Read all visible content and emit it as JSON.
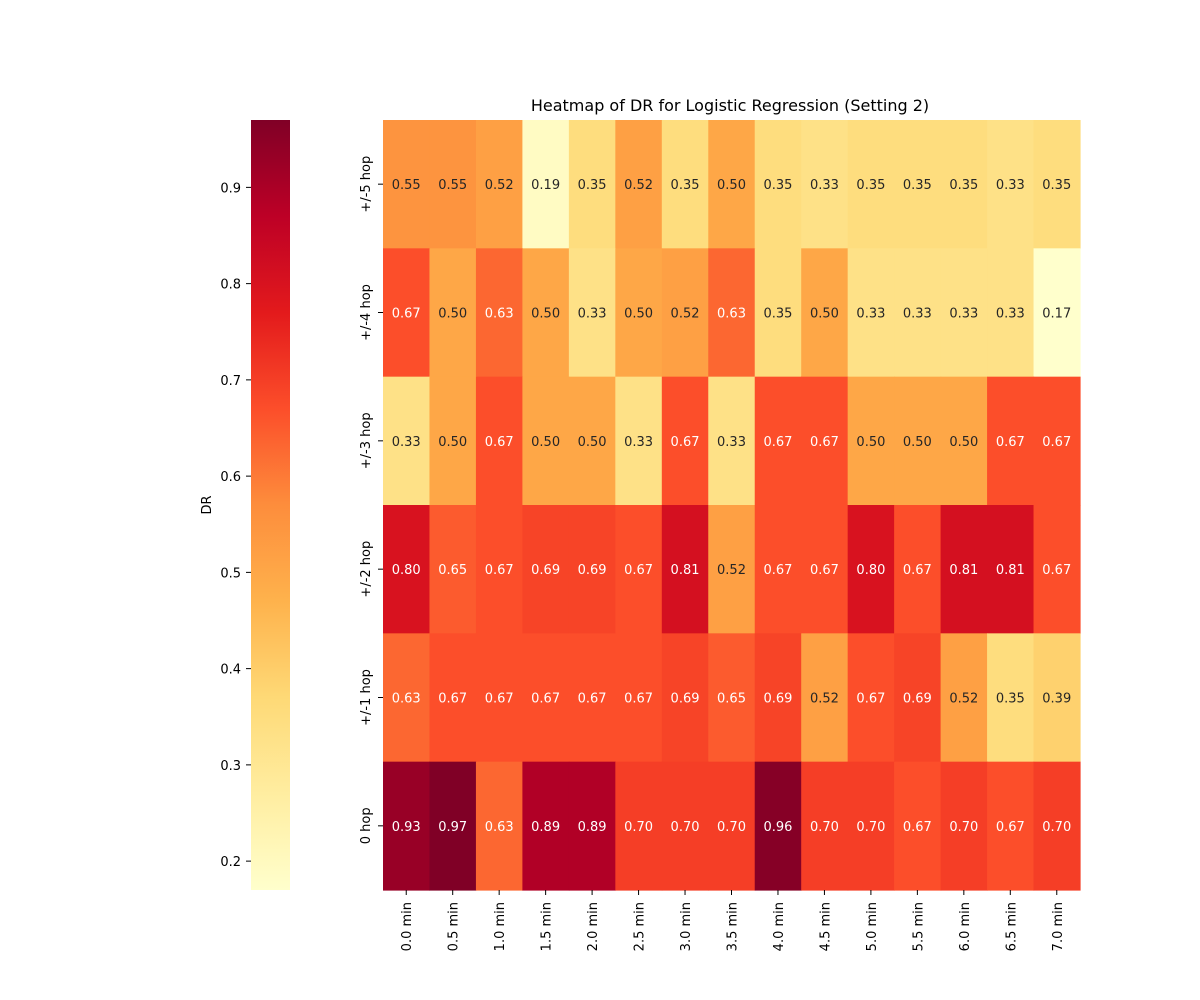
{
  "chart_data": {
    "type": "heatmap",
    "title": "Heatmap of DR for Logistic Regression (Setting 2)",
    "x_categories": [
      "0.0 min",
      "0.5 min",
      "1.0 min",
      "1.5 min",
      "2.0 min",
      "2.5 min",
      "3.0 min",
      "3.5 min",
      "4.0 min",
      "4.5 min",
      "5.0 min",
      "5.5 min",
      "6.0 min",
      "6.5 min",
      "7.0 min"
    ],
    "y_categories": [
      "+/-5 hop",
      "+/-4 hop",
      "+/-3 hop",
      "+/-2 hop",
      "+/-1 hop",
      "0 hop"
    ],
    "values": [
      [
        "0.55",
        "0.55",
        "0.52",
        "0.19",
        "0.35",
        "0.52",
        "0.35",
        "0.50",
        "0.35",
        "0.33",
        "0.35",
        "0.35",
        "0.35",
        "0.33",
        "0.35"
      ],
      [
        "0.67",
        "0.50",
        "0.63",
        "0.50",
        "0.33",
        "0.50",
        "0.52",
        "0.63",
        "0.35",
        "0.50",
        "0.33",
        "0.33",
        "0.33",
        "0.33",
        "0.17"
      ],
      [
        "0.33",
        "0.50",
        "0.67",
        "0.50",
        "0.50",
        "0.33",
        "0.67",
        "0.33",
        "0.67",
        "0.67",
        "0.50",
        "0.50",
        "0.50",
        "0.67",
        "0.67"
      ],
      [
        "0.80",
        "0.65",
        "0.67",
        "0.69",
        "0.69",
        "0.67",
        "0.81",
        "0.52",
        "0.67",
        "0.67",
        "0.80",
        "0.67",
        "0.81",
        "0.81",
        "0.67"
      ],
      [
        "0.63",
        "0.67",
        "0.67",
        "0.67",
        "0.67",
        "0.67",
        "0.69",
        "0.65",
        "0.69",
        "0.52",
        "0.67",
        "0.69",
        "0.52",
        "0.35",
        "0.39"
      ],
      [
        "0.93",
        "0.97",
        "0.63",
        "0.89",
        "0.89",
        "0.70",
        "0.70",
        "0.70",
        "0.96",
        "0.70",
        "0.70",
        "0.67",
        "0.70",
        "0.67",
        "0.70"
      ]
    ],
    "colorbar": {
      "label": "DR",
      "range": [
        0.17,
        0.97
      ],
      "ticks": [
        "0.2",
        "0.3",
        "0.4",
        "0.5",
        "0.6",
        "0.7",
        "0.8",
        "0.9"
      ],
      "position": "left"
    },
    "colormap": "YlOrRd",
    "grid": false
  }
}
